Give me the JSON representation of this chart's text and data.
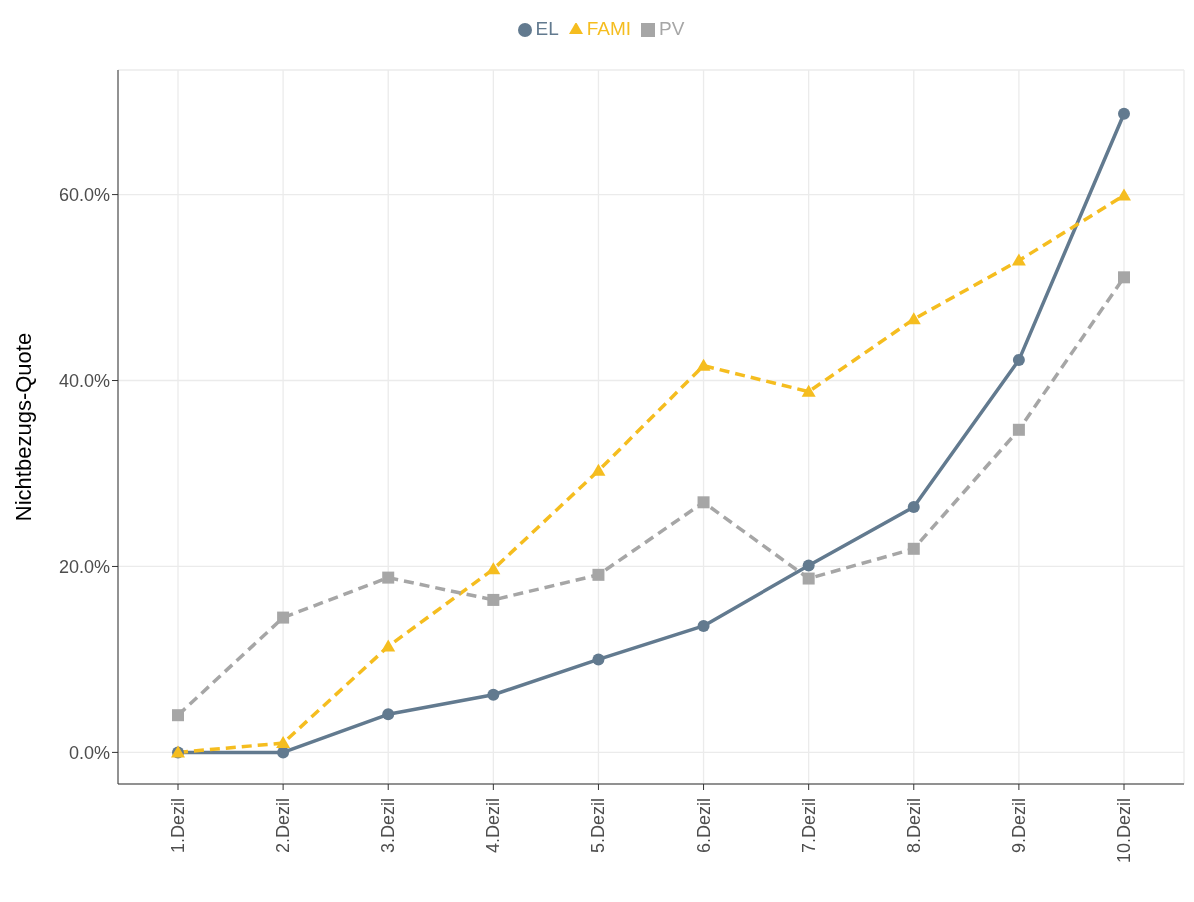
{
  "chart_data": {
    "type": "line",
    "ylabel": "Nichtbezugs-Quote",
    "categories": [
      "1.Dezil",
      "2.Dezil",
      "3.Dezil",
      "4.Dezil",
      "5.Dezil",
      "6.Dezil",
      "7.Dezil",
      "8.Dezil",
      "9.Dezil",
      "10.Dezil"
    ],
    "series": [
      {
        "name": "EL",
        "color": "#627a8f",
        "marker": "circle",
        "line_style": "solid",
        "values": [
          0,
          0,
          4.1,
          6.2,
          10.0,
          13.6,
          20.1,
          26.4,
          42.2,
          68.7
        ]
      },
      {
        "name": "FAMI",
        "color": "#f5bd1f",
        "marker": "triangle",
        "line_style": "dashed",
        "values": [
          0,
          1.0,
          11.4,
          19.7,
          30.3,
          41.6,
          38.8,
          46.6,
          52.9,
          59.9
        ]
      },
      {
        "name": "PV",
        "color": "#a6a6a6",
        "marker": "square",
        "line_style": "dashed",
        "values": [
          4.0,
          14.5,
          18.8,
          16.4,
          19.1,
          26.9,
          18.7,
          21.9,
          34.7,
          51.1
        ]
      }
    ],
    "ylim": [
      -3.4,
      73.4
    ],
    "yticks": [
      {
        "value": 0,
        "label": "0.0%"
      },
      {
        "value": 20,
        "label": "20.0%"
      },
      {
        "value": 40,
        "label": "40.0%"
      },
      {
        "value": 60,
        "label": "60.0%"
      }
    ],
    "grid": true,
    "legend": "top"
  }
}
